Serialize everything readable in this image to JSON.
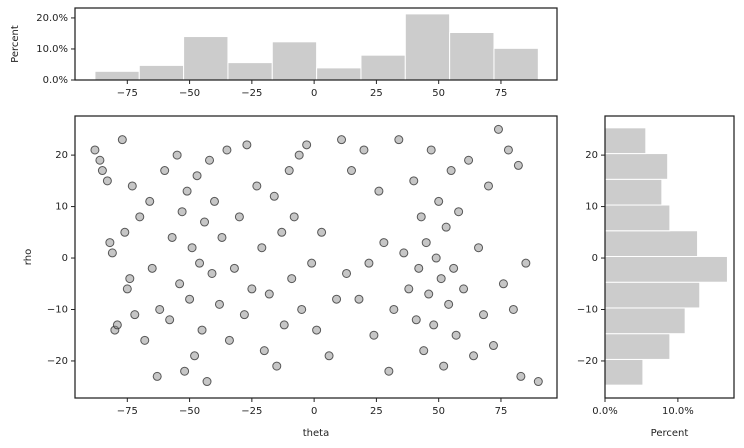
{
  "chart_data": [
    {
      "type": "histogram",
      "orientation": "vertical",
      "ylabel": "Percent",
      "color": "#cccccc",
      "bins": [
        -88,
        -70.2,
        -52.4,
        -34.6,
        -16.8,
        1,
        18.8,
        36.6,
        54.4,
        72.2,
        90
      ],
      "values": [
        2.8,
        4.7,
        14,
        5.6,
        12.3,
        3.9,
        8,
        21.3,
        15.3,
        10.2
      ],
      "xlim": [
        -96,
        97.5
      ],
      "ylim": [
        0,
        23.2
      ],
      "xticks": [
        {
          "value": -75,
          "label": "−75"
        },
        {
          "value": -50,
          "label": "−50"
        },
        {
          "value": -25,
          "label": "−25"
        },
        0,
        25,
        50,
        75
      ],
      "yticks": [
        {
          "value": 0,
          "label": "0.0%"
        },
        {
          "value": 10,
          "label": "10.0%"
        },
        {
          "value": 20,
          "label": "20.0%"
        }
      ]
    },
    {
      "type": "scatter",
      "xlabel": "theta",
      "ylabel": "rho",
      "color": "#808080",
      "edgecolor": "#333333",
      "x": [
        -88,
        -86,
        -85,
        -83,
        -82,
        -81,
        -80,
        -79,
        -77,
        -76,
        -75,
        -74,
        -73,
        -72,
        -70,
        -68,
        -66,
        -65,
        -63,
        -62,
        -60,
        -58,
        -57,
        -55,
        -54,
        -53,
        -52,
        -51,
        -50,
        -49,
        -48,
        -47,
        -46,
        -45,
        -44,
        -43,
        -42,
        -41,
        -40,
        -38,
        -37,
        -35,
        -34,
        -32,
        -30,
        -28,
        -27,
        -25,
        -23,
        -21,
        -20,
        -18,
        -16,
        -15,
        -13,
        -12,
        -10,
        -9,
        -8,
        -6,
        -5,
        -3,
        -1,
        1,
        3,
        6,
        9,
        11,
        13,
        15,
        18,
        20,
        22,
        24,
        26,
        28,
        30,
        32,
        34,
        36,
        38,
        40,
        41,
        42,
        43,
        44,
        45,
        46,
        47,
        48,
        49,
        50,
        51,
        52,
        53,
        54,
        55,
        56,
        57,
        58,
        60,
        62,
        64,
        66,
        68,
        70,
        72,
        74,
        76,
        78,
        80,
        82,
        83,
        85,
        90
      ],
      "y": [
        21,
        19,
        17,
        15,
        3,
        1,
        -14,
        -13,
        23,
        5,
        -6,
        -4,
        14,
        -11,
        8,
        -16,
        11,
        -2,
        -23,
        -10,
        17,
        -12,
        4,
        20,
        -5,
        9,
        -22,
        13,
        -8,
        2,
        -19,
        16,
        -1,
        -14,
        7,
        -24,
        19,
        -3,
        11,
        -9,
        4,
        21,
        -16,
        -2,
        8,
        -11,
        22,
        -6,
        14,
        2,
        -18,
        -7,
        12,
        -21,
        5,
        -13,
        17,
        -4,
        8,
        20,
        -10,
        22,
        -1,
        -14,
        5,
        -19,
        -8,
        23,
        -3,
        17,
        -8,
        21,
        -1,
        -15,
        13,
        3,
        -22,
        -10,
        23,
        1,
        -6,
        15,
        -12,
        -2,
        8,
        -18,
        3,
        -7,
        21,
        -13,
        0,
        11,
        -4,
        -21,
        6,
        -9,
        17,
        -2,
        -15,
        9,
        -6,
        19,
        -19,
        2,
        -11,
        14,
        -17,
        25,
        -5,
        21,
        -10,
        18,
        -23,
        -1,
        -24
      ],
      "xlim": [
        -96,
        97.5
      ],
      "ylim": [
        -27.2,
        27.6
      ],
      "xticks": [
        {
          "value": -75,
          "label": "−75"
        },
        {
          "value": -50,
          "label": "−50"
        },
        {
          "value": -25,
          "label": "−25"
        },
        0,
        25,
        50,
        75
      ],
      "yticks": [
        {
          "value": -20,
          "label": "−20"
        },
        {
          "value": -10,
          "label": "−10"
        },
        0,
        10,
        20
      ]
    },
    {
      "type": "histogram",
      "orientation": "horizontal",
      "xlabel": "Percent",
      "color": "#cccccc",
      "bins": [
        -24.7,
        -19.7,
        -14.7,
        -9.7,
        -4.7,
        0.3,
        5.3,
        10.3,
        15.3,
        20.3,
        25.3
      ],
      "values": [
        5.2,
        8.9,
        11,
        13,
        16.8,
        12.7,
        8.9,
        7.8,
        8.6,
        5.6
      ],
      "xlim": [
        0,
        17.7
      ],
      "ylim": [
        -27.2,
        27.6
      ],
      "xticks": [
        {
          "value": 0,
          "label": "0.0%"
        },
        {
          "value": 10,
          "label": "10.0%"
        }
      ],
      "yticks": [
        {
          "value": -20,
          "label": "−20"
        },
        {
          "value": -10,
          "label": "−10"
        },
        0,
        10,
        20
      ]
    }
  ]
}
